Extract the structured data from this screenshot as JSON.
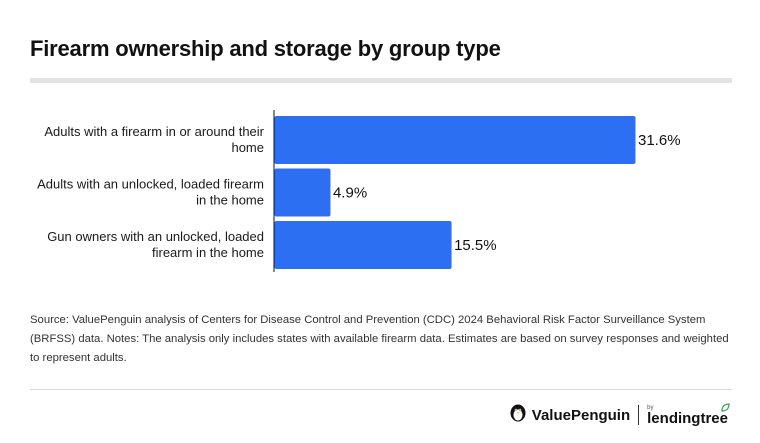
{
  "title": "Firearm ownership and storage by group type",
  "chart_data": {
    "type": "bar",
    "orientation": "horizontal",
    "categories": [
      [
        "Adults with a firearm in or around their",
        "home"
      ],
      [
        "Adults with an unlocked, loaded firearm",
        "in the home"
      ],
      [
        "Gun owners with an unlocked, loaded",
        "firearm in the home"
      ]
    ],
    "values": [
      31.6,
      4.9,
      15.5
    ],
    "value_labels": [
      "31.6%",
      "4.9%",
      "15.5%"
    ],
    "xlim": [
      0,
      31.6
    ],
    "bar_color": "#2d6ff2",
    "grid": false,
    "legend": "none"
  },
  "source_note": "Source: ValuePenguin analysis of Centers for Disease Control and Prevention (CDC) 2024 Behavioral Risk Factor Surveillance System (BRFSS) data. Notes: The analysis only includes states with available firearm data. Estimates are based on survey responses and weighted to represent adults.",
  "brand": {
    "primary": "ValuePenguin",
    "by": "by",
    "partner": "lendingtree",
    "leaf_color": "#3aa655"
  }
}
